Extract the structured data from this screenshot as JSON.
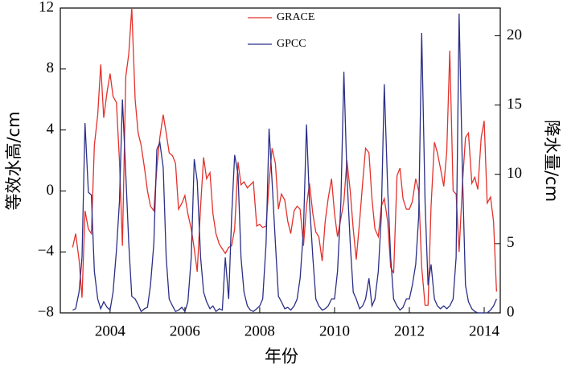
{
  "chart_data": {
    "type": "line",
    "xlabel": "年份",
    "ylabel": "等效水高/cm",
    "y2label": "降水量/cm",
    "legend": "top",
    "x": [
      2003,
      2003.08,
      2003.17,
      2003.25,
      2003.33,
      2003.42,
      2003.5,
      2003.58,
      2003.67,
      2003.75,
      2003.83,
      2003.92,
      2004,
      2004.08,
      2004.17,
      2004.25,
      2004.33,
      2004.42,
      2004.5,
      2004.58,
      2004.67,
      2004.75,
      2004.83,
      2004.92,
      2005,
      2005.08,
      2005.17,
      2005.25,
      2005.33,
      2005.42,
      2005.5,
      2005.58,
      2005.67,
      2005.75,
      2005.83,
      2005.92,
      2006,
      2006.08,
      2006.17,
      2006.25,
      2006.33,
      2006.42,
      2006.5,
      2006.58,
      2006.67,
      2006.75,
      2006.83,
      2006.92,
      2007,
      2007.08,
      2007.17,
      2007.25,
      2007.33,
      2007.42,
      2007.5,
      2007.58,
      2007.67,
      2007.75,
      2007.83,
      2007.92,
      2008,
      2008.08,
      2008.17,
      2008.25,
      2008.33,
      2008.42,
      2008.5,
      2008.58,
      2008.67,
      2008.75,
      2008.83,
      2008.92,
      2009,
      2009.08,
      2009.17,
      2009.25,
      2009.33,
      2009.42,
      2009.5,
      2009.58,
      2009.67,
      2009.75,
      2009.83,
      2009.92,
      2010,
      2010.08,
      2010.17,
      2010.25,
      2010.33,
      2010.42,
      2010.5,
      2010.58,
      2010.67,
      2010.75,
      2010.83,
      2010.92,
      2011,
      2011.08,
      2011.17,
      2011.25,
      2011.33,
      2011.42,
      2011.5,
      2011.58,
      2011.67,
      2011.75,
      2011.83,
      2011.92,
      2012,
      2012.08,
      2012.17,
      2012.25,
      2012.33,
      2012.42,
      2012.5,
      2012.58,
      2012.67,
      2012.75,
      2012.83,
      2012.92,
      2013,
      2013.08,
      2013.17,
      2013.25,
      2013.33,
      2013.42,
      2013.5,
      2013.58,
      2013.67,
      2013.75,
      2013.83,
      2013.92,
      2014,
      2014.08,
      2014.17,
      2014.25,
      2014.33
    ],
    "series": [
      {
        "name": "GRACE",
        "color": "#e4312b",
        "axis": "y",
        "values": [
          -3.7,
          -2.8,
          -4.5,
          -7,
          -1.3,
          -2.5,
          -2.8,
          3,
          5,
          8.3,
          4.8,
          6.5,
          7.7,
          6.2,
          5.8,
          2,
          -3.6,
          7.5,
          9,
          12,
          6,
          3.8,
          3,
          1.5,
          0,
          -1,
          -1.3,
          1.5,
          3.5,
          5,
          3.8,
          2.5,
          2.3,
          1.8,
          -1.2,
          -0.8,
          -0.3,
          -1.5,
          -2.5,
          -3.8,
          -5.3,
          -1,
          2.2,
          0.8,
          1.2,
          -1.5,
          -2.8,
          -3.5,
          -3.8,
          -4.1,
          -3.7,
          -3.6,
          -2.5,
          1.9,
          0.4,
          0.6,
          0.2,
          0.4,
          0.6,
          -2.3,
          -2.2,
          -2.4,
          -2.3,
          0.5,
          2.8,
          1.8,
          -1.2,
          -0.2,
          -0.6,
          -2,
          -2.8,
          -1.3,
          -1,
          -1.2,
          -3.6,
          -1,
          0.5,
          -1.5,
          -2.7,
          -3,
          -4.6,
          -2,
          -0.5,
          0.8,
          -1.5,
          -3,
          -1.8,
          -0.7,
          2,
          0,
          -2.5,
          -4.5,
          -2,
          0.5,
          2.8,
          2.5,
          -0.5,
          -2.5,
          -3,
          -1,
          -0.5,
          -2,
          -5,
          -5.4,
          1,
          1.5,
          -0.5,
          -1.2,
          -1.2,
          -0.7,
          0.8,
          0,
          -5,
          -7.5,
          -7.5,
          -1,
          3.2,
          2.5,
          1.5,
          0.3,
          2.6,
          9.2,
          0,
          -0.2,
          -4,
          0.5,
          3.5,
          3.8,
          0.5,
          0.9,
          0.1,
          3.5,
          4.6,
          -0.8,
          -0.4,
          -2,
          -6.6
        ]
      },
      {
        "name": "GPCC",
        "color": "#2b2f86",
        "axis": "y2",
        "values": [
          0.2,
          0.3,
          1.5,
          4,
          13.7,
          8.7,
          8.5,
          3,
          1,
          0.3,
          0.8,
          0.4,
          0.2,
          1.5,
          4.5,
          8,
          15.4,
          10,
          5,
          1.2,
          1,
          0.6,
          0.1,
          0.3,
          0.4,
          2,
          5,
          11.8,
          12.3,
          10.5,
          4,
          1,
          0.5,
          0.1,
          0.2,
          0.4,
          0.1,
          0.8,
          4,
          11.1,
          9.5,
          4,
          1.5,
          0.8,
          0.3,
          0.5,
          0.1,
          0.3,
          0.2,
          4,
          1,
          7,
          11.4,
          10,
          4,
          1.5,
          0.5,
          0.2,
          0.1,
          0.3,
          0.5,
          1,
          5,
          13.3,
          9.5,
          5,
          1.2,
          0.8,
          0.3,
          0.4,
          0.2,
          0.5,
          1,
          2.5,
          6,
          13.6,
          8,
          4,
          1,
          0.5,
          0.2,
          0.3,
          0.5,
          1,
          1,
          3,
          8,
          17.4,
          10,
          5,
          1.5,
          1,
          0.3,
          0.5,
          1,
          2.5,
          0.5,
          1,
          3,
          7,
          16.5,
          9,
          4,
          1,
          0.5,
          0.2,
          0.4,
          1,
          1,
          2,
          3.5,
          7,
          20.2,
          8,
          2,
          3.5,
          1,
          0.5,
          0.3,
          0.5,
          0.3,
          0.5,
          1,
          4,
          21.6,
          10,
          2,
          0.8,
          0.3,
          0.1,
          0,
          0,
          0,
          0,
          0.2,
          0.5,
          1
        ]
      }
    ],
    "xlim": [
      2002.67,
      2014.43
    ],
    "xticks": [
      2004,
      2006,
      2008,
      2010,
      2012,
      2014
    ],
    "ylim": [
      -8,
      12
    ],
    "yticks": [
      {
        "value": -8,
        "label": "−8"
      },
      {
        "value": -4,
        "label": "−4"
      },
      0,
      4,
      8,
      12
    ],
    "y2lim": [
      0,
      22
    ],
    "y2ticks": [
      0,
      5,
      10,
      15,
      20
    ]
  }
}
